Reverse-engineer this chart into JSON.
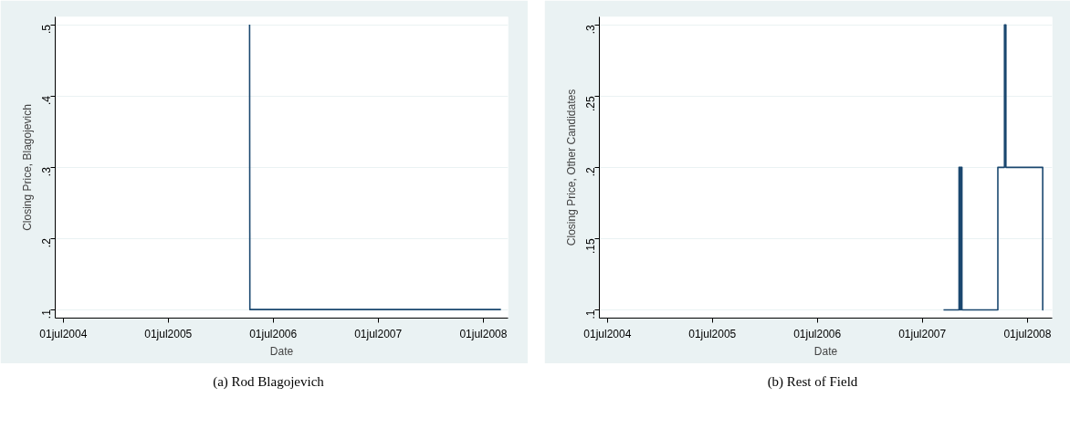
{
  "chart_data": [
    {
      "type": "line",
      "xlabel": "Date",
      "ylabel": "Closing Price, Blagojevich",
      "annotations": [
        "(a) Rod Blagojevich"
      ],
      "series": [
        {
          "color": "#1a476f",
          "x": [
            "2006-04-10",
            "2006-04-11",
            "2008-08-31"
          ],
          "values": [
            0.5,
            0.1,
            0.1
          ]
        }
      ],
      "xlim": [
        "2004-06-03",
        "2008-09-25"
      ],
      "ylim": [
        0.088,
        0.511
      ],
      "xticks": [
        {
          "value": "2004-07-01",
          "label": "01jul2004"
        },
        {
          "value": "2005-07-01",
          "label": "01jul2005"
        },
        {
          "value": "2006-07-01",
          "label": "01jul2006"
        },
        {
          "value": "2007-07-01",
          "label": "01jul2007"
        },
        {
          "value": "2008-07-01",
          "label": "01jul2008"
        }
      ],
      "yticks": [
        {
          "value": 0.1,
          "label": ".1"
        },
        {
          "value": 0.2,
          "label": ".2"
        },
        {
          "value": 0.3,
          "label": ".3"
        },
        {
          "value": 0.4,
          "label": ".4"
        },
        {
          "value": 0.5,
          "label": ".5"
        }
      ],
      "grid": "y"
    },
    {
      "type": "line",
      "xlabel": "Date",
      "ylabel": "Closing Price, Other Candidates",
      "annotations": [
        "(b) Rest of Field"
      ],
      "series": [
        {
          "color": "#1a476f",
          "x": [
            "2007-09-13",
            "2007-11-06",
            "2007-11-06",
            "2007-11-10",
            "2007-11-10",
            "2007-11-12",
            "2007-11-12",
            "2007-11-16",
            "2007-11-16",
            "2008-03-20",
            "2008-03-20",
            "2008-04-12",
            "2008-04-12",
            "2008-04-17",
            "2008-04-17",
            "2008-08-23",
            "2008-08-23",
            "2008-08-25"
          ],
          "values": [
            0.1,
            0.1,
            0.2,
            0.2,
            0.1,
            0.1,
            0.2,
            0.2,
            0.1,
            0.1,
            0.2,
            0.2,
            0.3,
            0.3,
            0.2,
            0.2,
            0.1,
            0.1
          ]
        }
      ],
      "xlim": [
        "2004-06-03",
        "2008-09-25"
      ],
      "ylim": [
        0.0942,
        0.3056
      ],
      "xticks": [
        {
          "value": "2004-07-01",
          "label": "01jul2004"
        },
        {
          "value": "2005-07-01",
          "label": "01jul2005"
        },
        {
          "value": "2006-07-01",
          "label": "01jul2006"
        },
        {
          "value": "2007-07-01",
          "label": "01jul2007"
        },
        {
          "value": "2008-07-01",
          "label": "01jul2008"
        }
      ],
      "yticks": [
        {
          "value": 0.1,
          "label": ".1"
        },
        {
          "value": 0.15,
          "label": ".15"
        },
        {
          "value": 0.2,
          "label": ".2"
        },
        {
          "value": 0.25,
          "label": ".25"
        },
        {
          "value": 0.3,
          "label": ".3"
        }
      ],
      "grid": "y"
    }
  ]
}
